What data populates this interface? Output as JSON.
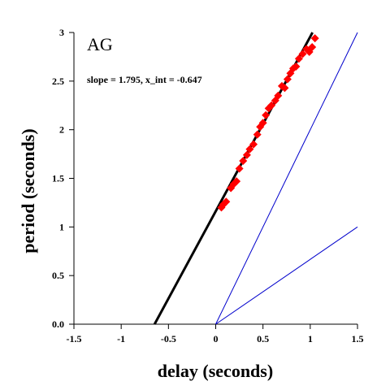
{
  "chart_data": {
    "type": "scatter",
    "title": "AG",
    "annotation": "slope = 1.795, x_int = -0.647",
    "xlabel": "delay (seconds)",
    "ylabel": "period (seconds)",
    "xlim": [
      -1.5,
      1.5
    ],
    "ylim": [
      0,
      3
    ],
    "xticks": [
      -1.5,
      -1,
      -0.5,
      0,
      0.5,
      1,
      1.5
    ],
    "yticks": [
      0,
      0.5,
      1,
      1.5,
      2,
      2.5,
      3
    ],
    "xtick_labels": [
      "-1.5",
      "-1",
      "-0.5",
      "0",
      "0.5",
      "1",
      "1.5"
    ],
    "ytick_labels": [
      "0.0",
      "0.5",
      "1",
      "1.5",
      "2",
      "2.5",
      "3"
    ],
    "grid": false,
    "series": [
      {
        "kind": "points",
        "marker": "diamond",
        "color": "#ff0000",
        "x": [
          0.06,
          0.08,
          0.11,
          0.16,
          0.19,
          0.22,
          0.25,
          0.29,
          0.33,
          0.36,
          0.4,
          0.44,
          0.47,
          0.5,
          0.53,
          0.56,
          0.59,
          0.63,
          0.66,
          0.7,
          0.73,
          0.76,
          0.79,
          0.82,
          0.85,
          0.88,
          0.92,
          0.96,
          0.99,
          1.02,
          1.05
        ],
        "y": [
          1.2,
          1.23,
          1.26,
          1.4,
          1.44,
          1.47,
          1.6,
          1.68,
          1.74,
          1.8,
          1.85,
          1.95,
          2.03,
          2.07,
          2.15,
          2.22,
          2.25,
          2.3,
          2.35,
          2.45,
          2.43,
          2.52,
          2.58,
          2.63,
          2.65,
          2.73,
          2.78,
          2.83,
          2.8,
          2.85,
          2.94
        ]
      },
      {
        "kind": "line",
        "color": "#000000",
        "x": [
          -0.647,
          1.024
        ],
        "y": [
          0,
          3.0
        ]
      },
      {
        "kind": "line",
        "color": "#0000cc",
        "x": [
          0,
          1.5
        ],
        "y": [
          0,
          3
        ]
      },
      {
        "kind": "line",
        "color": "#0000cc",
        "x": [
          0,
          1.5
        ],
        "y": [
          0,
          1
        ]
      }
    ]
  }
}
